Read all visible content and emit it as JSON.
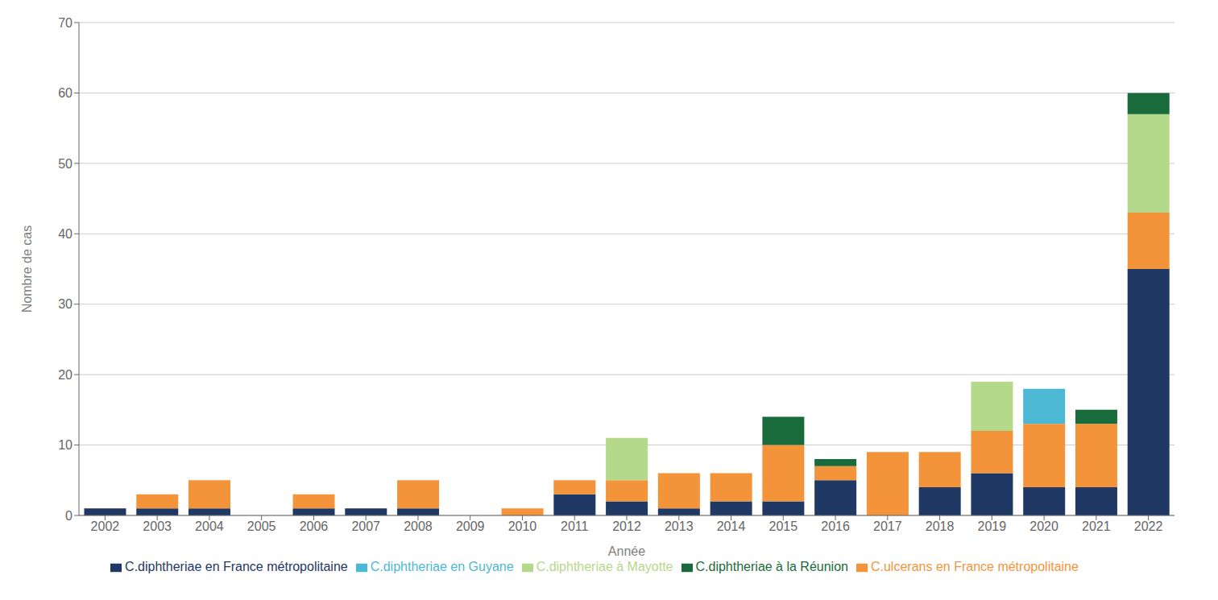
{
  "chart_data": {
    "type": "bar",
    "stacked": true,
    "xlabel": "Année",
    "ylabel": "Nombre de cas",
    "categories": [
      "2002",
      "2003",
      "2004",
      "2005",
      "2006",
      "2007",
      "2008",
      "2009",
      "2010",
      "2011",
      "2012",
      "2013",
      "2014",
      "2015",
      "2016",
      "2017",
      "2018",
      "2019",
      "2020",
      "2021",
      "2022"
    ],
    "series": [
      {
        "name": "C.diphtheriae en France métropolitaine",
        "color": "#1f3864",
        "values": [
          1,
          1,
          1,
          0,
          1,
          1,
          1,
          0,
          0,
          3,
          2,
          1,
          2,
          2,
          5,
          0,
          4,
          6,
          4,
          4,
          35
        ]
      },
      {
        "name": "C.ulcerans en France métropolitaine",
        "color": "#f4943a",
        "values": [
          0,
          2,
          4,
          0,
          2,
          0,
          4,
          0,
          1,
          2,
          3,
          5,
          4,
          8,
          2,
          9,
          5,
          6,
          9,
          9,
          8
        ]
      },
      {
        "name": "C.diphtheriae à Mayotte",
        "color": "#b5d98b",
        "values": [
          0,
          0,
          0,
          0,
          0,
          0,
          0,
          0,
          0,
          0,
          6,
          0,
          0,
          0,
          0,
          0,
          0,
          7,
          0,
          0,
          14
        ]
      },
      {
        "name": "C.diphtheriae à la Réunion",
        "color": "#1a6b3b",
        "values": [
          0,
          0,
          0,
          0,
          0,
          0,
          0,
          0,
          0,
          0,
          0,
          0,
          0,
          4,
          1,
          0,
          0,
          0,
          0,
          2,
          3
        ]
      },
      {
        "name": "C.diphtheriae en Guyane",
        "color": "#4db8d4",
        "values": [
          0,
          0,
          0,
          0,
          0,
          0,
          0,
          0,
          0,
          0,
          0,
          0,
          0,
          0,
          0,
          0,
          0,
          0,
          5,
          0,
          0
        ]
      }
    ],
    "ylim": [
      0,
      70
    ],
    "yticks": [
      0,
      10,
      20,
      30,
      40,
      50,
      60,
      70
    ],
    "grid": true,
    "legend": "bottom"
  }
}
